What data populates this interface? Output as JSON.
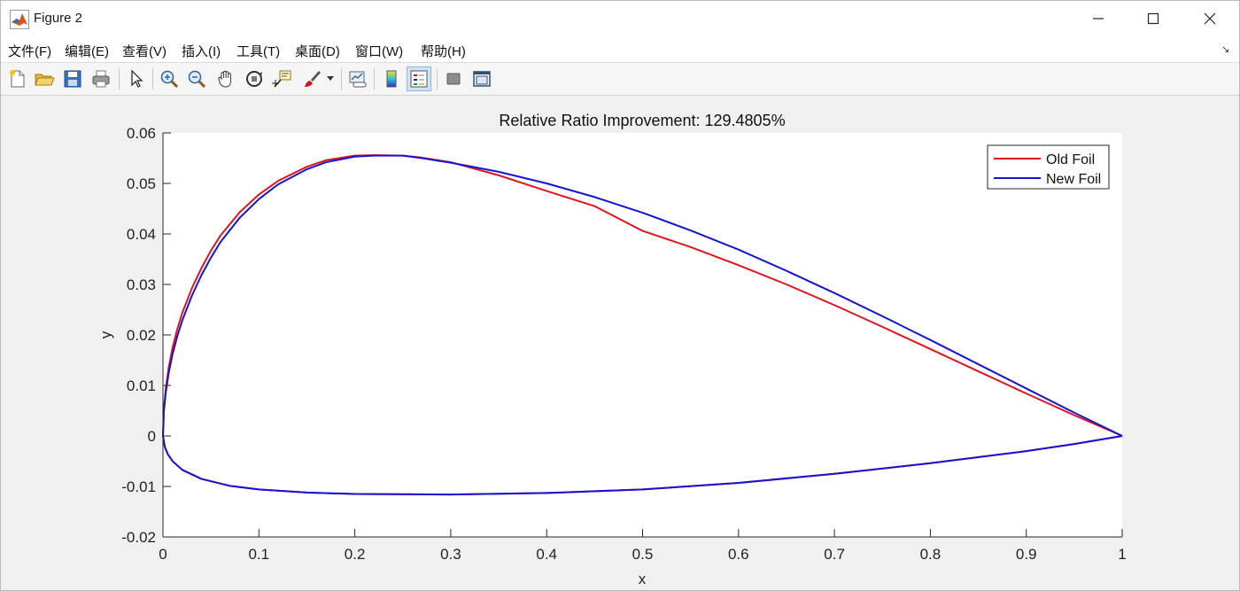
{
  "window": {
    "title": "Figure 2",
    "controls": [
      "minimize",
      "maximize",
      "close"
    ]
  },
  "menu": {
    "items": [
      {
        "label": "文件(F)"
      },
      {
        "label": "编辑(E)"
      },
      {
        "label": "查看(V)"
      },
      {
        "label": "插入(I)"
      },
      {
        "label": "工具(T)"
      },
      {
        "label": "桌面(D)"
      },
      {
        "label": "窗口(W)"
      },
      {
        "label": "帮助(H)"
      }
    ],
    "corner_glyph": "↘"
  },
  "toolbar": {
    "buttons": [
      {
        "icon": "new-figure-icon"
      },
      {
        "icon": "open-folder-icon"
      },
      {
        "icon": "save-icon"
      },
      {
        "icon": "print-icon"
      },
      {
        "icon": "pointer-icon"
      },
      {
        "icon": "zoom-in-icon"
      },
      {
        "icon": "zoom-out-icon"
      },
      {
        "icon": "pan-hand-icon"
      },
      {
        "icon": "rotate-3d-icon"
      },
      {
        "icon": "data-cursor-icon"
      },
      {
        "icon": "brush-icon"
      },
      {
        "icon": "link-plot-icon"
      },
      {
        "icon": "colorbar-icon"
      },
      {
        "icon": "legend-icon",
        "active": true
      },
      {
        "icon": "hide-plot-tools-icon"
      },
      {
        "icon": "show-plot-tools-icon"
      }
    ]
  },
  "chart_data": {
    "type": "line",
    "title": "Relative Ratio Improvement: 129.4805%",
    "xlabel": "x",
    "ylabel": "y",
    "xlim": [
      0,
      1
    ],
    "ylim": [
      -0.02,
      0.06
    ],
    "xticks": [
      0,
      0.1,
      0.2,
      0.3,
      0.4,
      0.5,
      0.6,
      0.7,
      0.8,
      0.9,
      1
    ],
    "xtick_labels": [
      "0",
      "0.1",
      "0.2",
      "0.3",
      "0.4",
      "0.5",
      "0.6",
      "0.7",
      "0.8",
      "0.9",
      "1"
    ],
    "yticks": [
      -0.02,
      -0.01,
      0,
      0.01,
      0.02,
      0.03,
      0.04,
      0.05,
      0.06
    ],
    "ytick_labels": [
      "-0.02",
      "-0.01",
      "0",
      "0.01",
      "0.02",
      "0.03",
      "0.04",
      "0.05",
      "0.06"
    ],
    "grid": false,
    "legend_position": "top-right",
    "series": [
      {
        "name": "Old Foil",
        "color": "#e0141e",
        "x": [
          1,
          0.95,
          0.9,
          0.85,
          0.8,
          0.75,
          0.7,
          0.65,
          0.6,
          0.55,
          0.5,
          0.45,
          0.4,
          0.35,
          0.3,
          0.27,
          0.25,
          0.22,
          0.2,
          0.17,
          0.15,
          0.12,
          0.1,
          0.08,
          0.06,
          0.05,
          0.04,
          0.03,
          0.02,
          0.015,
          0.01,
          0.006,
          0.003,
          0.001,
          0,
          0.002,
          0.005,
          0.01,
          0.02,
          0.04,
          0.07,
          0.1,
          0.15,
          0.2,
          0.3,
          0.4,
          0.5,
          0.6,
          0.7,
          0.8,
          0.9,
          0.95,
          1
        ],
        "y": [
          0,
          0.0041,
          0.0084,
          0.0128,
          0.0172,
          0.0216,
          0.0259,
          0.03,
          0.0338,
          0.0374,
          0.0406,
          0.0455,
          0.0485,
          0.0516,
          0.0542,
          0.0551,
          0.0555,
          0.0556,
          0.0555,
          0.0546,
          0.0533,
          0.0505,
          0.0478,
          0.0443,
          0.0397,
          0.0367,
          0.0332,
          0.0292,
          0.0243,
          0.0212,
          0.0175,
          0.0136,
          0.0095,
          0.0055,
          0,
          -0.0022,
          -0.0036,
          -0.005,
          -0.0067,
          -0.0085,
          -0.0099,
          -0.0106,
          -0.0112,
          -0.0115,
          -0.0116,
          -0.0113,
          -0.0106,
          -0.0093,
          -0.0075,
          -0.0054,
          -0.003,
          -0.0016,
          0
        ]
      },
      {
        "name": "New Foil",
        "color": "#1414d2",
        "x": [
          1,
          0.95,
          0.9,
          0.85,
          0.8,
          0.75,
          0.7,
          0.65,
          0.6,
          0.55,
          0.5,
          0.45,
          0.4,
          0.35,
          0.3,
          0.27,
          0.25,
          0.22,
          0.2,
          0.17,
          0.15,
          0.12,
          0.1,
          0.08,
          0.06,
          0.05,
          0.04,
          0.03,
          0.02,
          0.015,
          0.01,
          0.006,
          0.003,
          0.001,
          0,
          0.002,
          0.005,
          0.01,
          0.02,
          0.04,
          0.07,
          0.1,
          0.15,
          0.2,
          0.3,
          0.4,
          0.5,
          0.6,
          0.7,
          0.8,
          0.9,
          0.95,
          1
        ],
        "y": [
          0,
          0.0046,
          0.0094,
          0.0142,
          0.019,
          0.0237,
          0.0283,
          0.0327,
          0.0369,
          0.0407,
          0.0442,
          0.0473,
          0.05,
          0.0523,
          0.0541,
          0.055,
          0.0555,
          0.0555,
          0.0553,
          0.0542,
          0.0528,
          0.0498,
          0.0469,
          0.0432,
          0.0384,
          0.0353,
          0.0318,
          0.0277,
          0.0228,
          0.0198,
          0.0162,
          0.0125,
          0.0087,
          0.005,
          0,
          -0.0022,
          -0.0036,
          -0.005,
          -0.0067,
          -0.0085,
          -0.0099,
          -0.0106,
          -0.0112,
          -0.0115,
          -0.0116,
          -0.0113,
          -0.0106,
          -0.0093,
          -0.0075,
          -0.0054,
          -0.003,
          -0.0016,
          0
        ]
      }
    ]
  }
}
